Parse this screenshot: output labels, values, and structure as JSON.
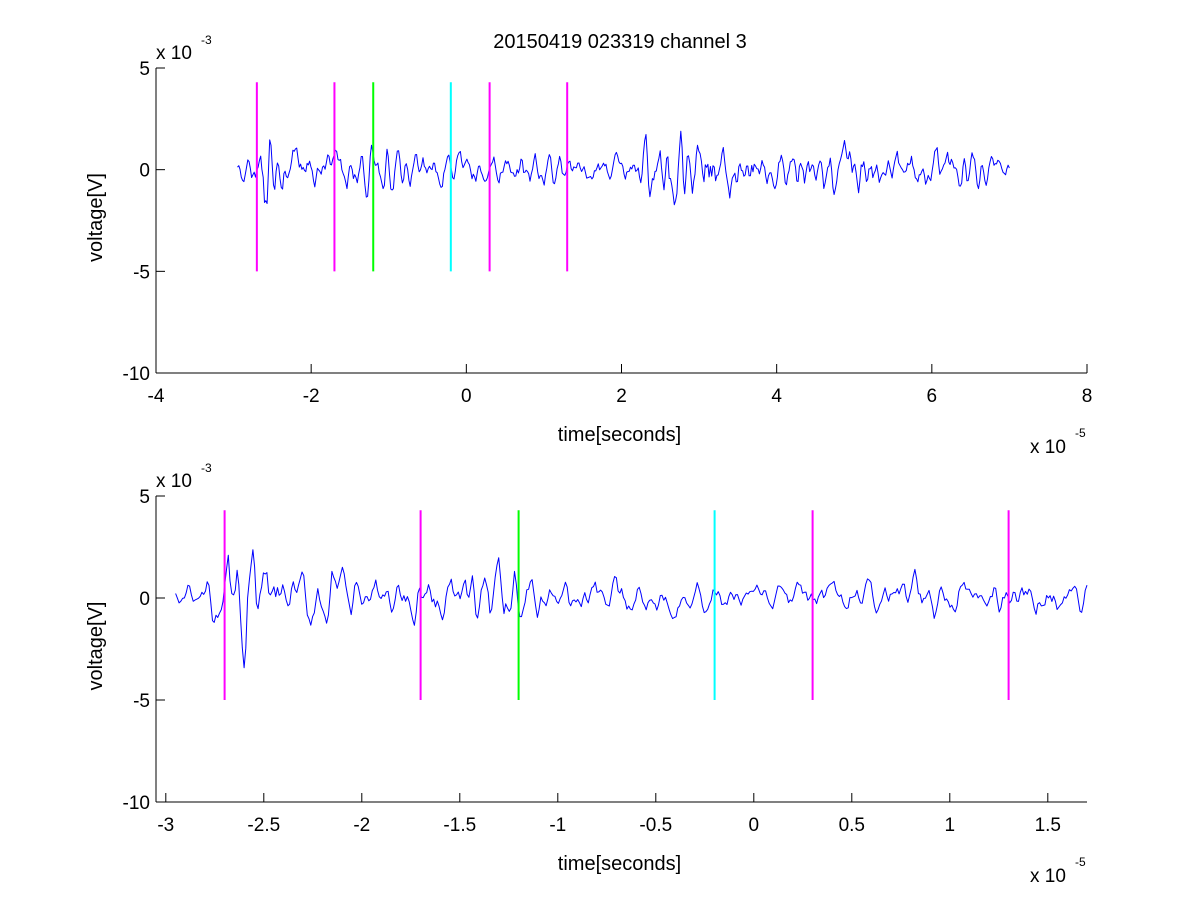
{
  "title": "20150419 023319 channel 3",
  "chart_data": [
    {
      "type": "line",
      "xlabel": "time[seconds]",
      "ylabel": "voltage[V]",
      "x_exponent_label": "x 10",
      "x_exponent": "-5",
      "y_exponent_label": "x 10",
      "y_exponent": "-3",
      "xlim": [
        -4,
        8
      ],
      "ylim": [
        -10,
        5
      ],
      "xticks": [
        -4,
        -2,
        0,
        2,
        4,
        6,
        8
      ],
      "xtick_labels": [
        "-4",
        "-2",
        "0",
        "2",
        "4",
        "6",
        "8"
      ],
      "yticks": [
        -10,
        -5,
        0,
        5
      ],
      "ytick_labels": [
        "-10",
        "-5",
        "0",
        "5"
      ],
      "grid": false,
      "series": [
        {
          "color": "#0000ff",
          "x_range": [
            -2.95,
            7.0
          ],
          "points": 600,
          "amplitude_envelope": [
            [
              -2.95,
              0.5
            ],
            [
              -2.7,
              1.8
            ],
            [
              -2.6,
              2.6
            ],
            [
              -2.5,
              1.4
            ],
            [
              -2.0,
              0.9
            ],
            [
              -1.5,
              0.9
            ],
            [
              -1.2,
              1.2
            ],
            [
              -0.5,
              0.8
            ],
            [
              0.0,
              0.7
            ],
            [
              1.0,
              0.8
            ],
            [
              1.5,
              0.6
            ],
            [
              2.0,
              0.6
            ],
            [
              2.4,
              1.6
            ],
            [
              2.8,
              2.0
            ],
            [
              3.2,
              1.5
            ],
            [
              4.0,
              1.0
            ],
            [
              5.0,
              1.3
            ],
            [
              5.5,
              0.9
            ],
            [
              6.5,
              1.0
            ],
            [
              7.0,
              0.6
            ]
          ]
        }
      ],
      "markers": [
        {
          "x": -2.7,
          "color": "#ff00ff",
          "y_range": [
            -5,
            4.3
          ]
        },
        {
          "x": -1.7,
          "color": "#ff00ff",
          "y_range": [
            -5,
            4.3
          ]
        },
        {
          "x": -1.2,
          "color": "#00ff00",
          "y_range": [
            -5,
            4.3
          ]
        },
        {
          "x": -0.2,
          "color": "#00ffff",
          "y_range": [
            -5,
            4.3
          ]
        },
        {
          "x": 0.3,
          "color": "#ff00ff",
          "y_range": [
            -5,
            4.3
          ]
        },
        {
          "x": 1.3,
          "color": "#ff00ff",
          "y_range": [
            -5,
            4.3
          ]
        }
      ]
    },
    {
      "type": "line",
      "xlabel": "time[seconds]",
      "ylabel": "voltage[V]",
      "x_exponent_label": "x 10",
      "x_exponent": "-5",
      "y_exponent_label": "x 10",
      "y_exponent": "-3",
      "xlim": [
        -3.05,
        1.7
      ],
      "ylim": [
        -10,
        5
      ],
      "xticks": [
        -3,
        -2.5,
        -2,
        -1.5,
        -1,
        -0.5,
        0,
        0.5,
        1,
        1.5
      ],
      "xtick_labels": [
        "-3",
        "-2.5",
        "-2",
        "-1.5",
        "-1",
        "-0.5",
        "0",
        "0.5",
        "1",
        "1.5"
      ],
      "yticks": [
        -10,
        -5,
        0,
        5
      ],
      "ytick_labels": [
        "-10",
        "-5",
        "0",
        "5"
      ],
      "grid": false,
      "series": [
        {
          "color": "#0000ff",
          "x_range": [
            -2.95,
            1.7
          ],
          "points": 520,
          "amplitude_envelope": [
            [
              -2.95,
              0.6
            ],
            [
              -2.8,
              1.0
            ],
            [
              -2.7,
              1.6
            ],
            [
              -2.6,
              2.8
            ],
            [
              -2.5,
              1.6
            ],
            [
              -2.3,
              1.3
            ],
            [
              -2.2,
              1.8
            ],
            [
              -2.0,
              1.0
            ],
            [
              -1.5,
              1.0
            ],
            [
              -1.4,
              1.6
            ],
            [
              -1.2,
              1.3
            ],
            [
              -1.0,
              0.9
            ],
            [
              -0.5,
              0.8
            ],
            [
              0.0,
              0.7
            ],
            [
              0.5,
              0.8
            ],
            [
              0.9,
              1.2
            ],
            [
              1.0,
              0.9
            ],
            [
              1.3,
              1.0
            ],
            [
              1.7,
              0.6
            ]
          ]
        }
      ],
      "markers": [
        {
          "x": -2.7,
          "color": "#ff00ff",
          "y_range": [
            -5,
            4.3
          ]
        },
        {
          "x": -1.7,
          "color": "#ff00ff",
          "y_range": [
            -5,
            4.3
          ]
        },
        {
          "x": -1.2,
          "color": "#00ff00",
          "y_range": [
            -5,
            4.3
          ]
        },
        {
          "x": -0.2,
          "color": "#00ffff",
          "y_range": [
            -5,
            4.3
          ]
        },
        {
          "x": 0.3,
          "color": "#ff00ff",
          "y_range": [
            -5,
            4.3
          ]
        },
        {
          "x": 1.3,
          "color": "#ff00ff",
          "y_range": [
            -5,
            4.3
          ]
        }
      ]
    }
  ]
}
